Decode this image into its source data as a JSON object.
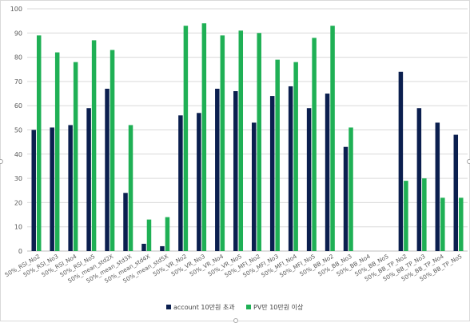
{
  "chart_data": {
    "type": "bar",
    "title": "",
    "xlabel": "",
    "ylabel": "",
    "ylim": [
      0,
      100
    ],
    "yticks": [
      0,
      10,
      20,
      30,
      40,
      50,
      60,
      70,
      80,
      90,
      100
    ],
    "grid": true,
    "legend_position": "bottom",
    "categories": [
      "50%_RSI_No2",
      "50%_RSI_No3",
      "50%_RSI_No4",
      "50%_RSI_No5",
      "50%_mean_std2X",
      "50%_mean_std3X",
      "50%_mean_std4X",
      "50%_mean_std5X",
      "50%_VR_No2",
      "50%_VR_No3",
      "50%_VR_No4",
      "50%_VR_No5",
      "50%_MFI_No2",
      "50%_MFI_No3",
      "50%_MFI_No4",
      "50%_MFI_No5",
      "50%_BB_No2",
      "50%_BB_No3",
      "50%_BB_No4",
      "50%_BB_No5",
      "50%_BB_TP_No2",
      "50%_BB_TP_No3",
      "50%_BB_TP_No4",
      "50%_BB_TP_No5"
    ],
    "series": [
      {
        "name": "account 10만원 초과",
        "color": "#0b1f4f",
        "values": [
          50,
          51,
          52,
          59,
          67,
          24,
          3,
          2,
          56,
          57,
          67,
          66,
          53,
          64,
          68,
          59,
          65,
          43,
          null,
          null,
          74,
          59,
          53,
          48
        ]
      },
      {
        "name": "PV만 10만원 이상",
        "color": "#1fb055",
        "values": [
          89,
          82,
          78,
          87,
          83,
          52,
          13,
          14,
          93,
          94,
          89,
          91,
          90,
          79,
          78,
          88,
          93,
          51,
          null,
          null,
          29,
          30,
          22,
          22
        ]
      }
    ]
  }
}
